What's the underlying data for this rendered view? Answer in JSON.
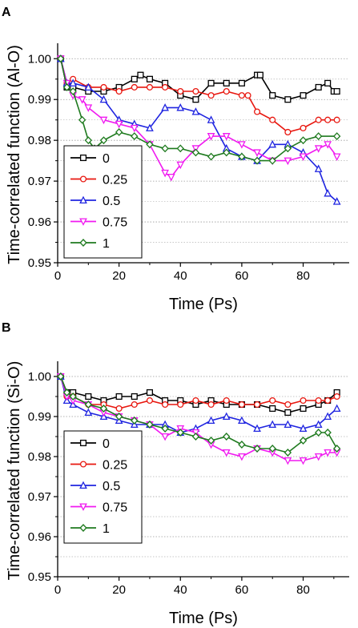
{
  "chart_data": [
    {
      "panel": "A",
      "type": "line",
      "xlabel": "Time (Ps)",
      "ylabel": "Time-correlated function (Al-O)",
      "xlim": [
        0,
        95
      ],
      "ylim": [
        0.95,
        1.003
      ],
      "xticks": [
        0,
        20,
        40,
        60,
        80
      ],
      "yticks": [
        0.95,
        0.96,
        0.97,
        0.98,
        0.99,
        1.0
      ],
      "grid": "horizontal-dotted",
      "legend_position": "bottom-left",
      "series": [
        {
          "name": "0",
          "color": "#000000",
          "marker": "square",
          "x": [
            1,
            3,
            5,
            10,
            15,
            20,
            25,
            27,
            30,
            35,
            40,
            45,
            50,
            55,
            60,
            65,
            66,
            70,
            75,
            80,
            85,
            88,
            90,
            91
          ],
          "y": [
            1.0,
            0.993,
            0.993,
            0.992,
            0.992,
            0.993,
            0.995,
            0.996,
            0.995,
            0.994,
            0.991,
            0.99,
            0.994,
            0.994,
            0.994,
            0.996,
            0.996,
            0.991,
            0.99,
            0.991,
            0.993,
            0.994,
            0.992,
            0.992
          ]
        },
        {
          "name": "0.25",
          "color": "#e8170f",
          "marker": "circle",
          "x": [
            1,
            3,
            5,
            10,
            15,
            20,
            25,
            30,
            35,
            40,
            45,
            50,
            55,
            60,
            62,
            65,
            70,
            75,
            80,
            85,
            88,
            91
          ],
          "y": [
            1.0,
            0.994,
            0.995,
            0.993,
            0.993,
            0.992,
            0.993,
            0.993,
            0.993,
            0.992,
            0.992,
            0.991,
            0.992,
            0.991,
            0.991,
            0.987,
            0.985,
            0.982,
            0.983,
            0.985,
            0.985,
            0.985
          ]
        },
        {
          "name": "0.5",
          "color": "#1f24e0",
          "marker": "triangle-up",
          "x": [
            1,
            3,
            5,
            10,
            15,
            20,
            25,
            30,
            35,
            40,
            45,
            50,
            55,
            60,
            65,
            70,
            75,
            80,
            85,
            88,
            91
          ],
          "y": [
            1.0,
            0.994,
            0.994,
            0.993,
            0.99,
            0.985,
            0.984,
            0.983,
            0.988,
            0.988,
            0.987,
            0.985,
            0.978,
            0.976,
            0.975,
            0.979,
            0.979,
            0.977,
            0.973,
            0.967,
            0.965
          ]
        },
        {
          "name": "0.75",
          "color": "#f01af0",
          "marker": "triangle-down",
          "x": [
            1,
            3,
            5,
            8,
            10,
            15,
            20,
            25,
            30,
            35,
            37,
            40,
            45,
            50,
            55,
            60,
            65,
            70,
            75,
            80,
            85,
            88,
            91
          ],
          "y": [
            1.0,
            0.994,
            0.991,
            0.99,
            0.988,
            0.985,
            0.984,
            0.983,
            0.979,
            0.972,
            0.971,
            0.974,
            0.978,
            0.981,
            0.981,
            0.979,
            0.977,
            0.975,
            0.975,
            0.976,
            0.978,
            0.979,
            0.976
          ]
        },
        {
          "name": "1",
          "color": "#1e7a1e",
          "marker": "diamond",
          "x": [
            1,
            3,
            5,
            8,
            10,
            12,
            15,
            20,
            25,
            30,
            35,
            40,
            45,
            50,
            55,
            60,
            65,
            70,
            75,
            80,
            85,
            91
          ],
          "y": [
            1.0,
            0.993,
            0.992,
            0.985,
            0.98,
            0.978,
            0.98,
            0.982,
            0.981,
            0.979,
            0.978,
            0.978,
            0.977,
            0.976,
            0.977,
            0.976,
            0.975,
            0.975,
            0.978,
            0.98,
            0.981,
            0.981
          ]
        }
      ]
    },
    {
      "panel": "B",
      "type": "line",
      "xlabel": "Time (Ps)",
      "ylabel": "Time-correlated function (Si-O)",
      "xlim": [
        0,
        95
      ],
      "ylim": [
        0.95,
        1.003
      ],
      "xticks": [
        0,
        20,
        40,
        60,
        80
      ],
      "yticks": [
        0.95,
        0.96,
        0.97,
        0.98,
        0.99,
        1.0
      ],
      "grid": "horizontal-dotted",
      "legend_position": "bottom-left",
      "series": [
        {
          "name": "0",
          "color": "#000000",
          "marker": "square",
          "x": [
            1,
            3,
            5,
            10,
            15,
            20,
            25,
            30,
            35,
            40,
            45,
            50,
            55,
            60,
            65,
            70,
            75,
            80,
            85,
            88,
            91
          ],
          "y": [
            1.0,
            0.996,
            0.996,
            0.995,
            0.994,
            0.995,
            0.995,
            0.996,
            0.994,
            0.994,
            0.993,
            0.994,
            0.993,
            0.993,
            0.993,
            0.992,
            0.991,
            0.992,
            0.993,
            0.994,
            0.996
          ]
        },
        {
          "name": "0.25",
          "color": "#e8170f",
          "marker": "circle",
          "x": [
            1,
            3,
            5,
            10,
            15,
            20,
            25,
            30,
            35,
            40,
            45,
            50,
            55,
            60,
            65,
            70,
            75,
            80,
            85,
            88,
            91
          ],
          "y": [
            1.0,
            0.995,
            0.995,
            0.993,
            0.993,
            0.992,
            0.993,
            0.994,
            0.993,
            0.993,
            0.994,
            0.993,
            0.994,
            0.993,
            0.993,
            0.994,
            0.993,
            0.994,
            0.994,
            0.994,
            0.995
          ]
        },
        {
          "name": "0.5",
          "color": "#1f24e0",
          "marker": "triangle-up",
          "x": [
            1,
            3,
            5,
            10,
            15,
            20,
            25,
            30,
            35,
            40,
            45,
            50,
            55,
            60,
            65,
            70,
            75,
            80,
            85,
            88,
            91
          ],
          "y": [
            1.0,
            0.994,
            0.993,
            0.991,
            0.99,
            0.989,
            0.988,
            0.988,
            0.988,
            0.986,
            0.987,
            0.989,
            0.99,
            0.989,
            0.987,
            0.988,
            0.988,
            0.987,
            0.988,
            0.99,
            0.992
          ]
        },
        {
          "name": "0.75",
          "color": "#f01af0",
          "marker": "triangle-down",
          "x": [
            1,
            3,
            5,
            10,
            15,
            20,
            25,
            30,
            35,
            40,
            45,
            50,
            55,
            60,
            65,
            70,
            75,
            80,
            85,
            88,
            91
          ],
          "y": [
            1.0,
            0.995,
            0.994,
            0.993,
            0.991,
            0.99,
            0.989,
            0.988,
            0.985,
            0.987,
            0.986,
            0.983,
            0.981,
            0.98,
            0.982,
            0.981,
            0.979,
            0.979,
            0.98,
            0.981,
            0.981
          ]
        },
        {
          "name": "1",
          "color": "#1e7a1e",
          "marker": "diamond",
          "x": [
            1,
            3,
            5,
            10,
            15,
            20,
            25,
            30,
            35,
            40,
            45,
            50,
            55,
            60,
            65,
            70,
            75,
            80,
            85,
            88,
            91
          ],
          "y": [
            1.0,
            0.996,
            0.995,
            0.993,
            0.992,
            0.99,
            0.989,
            0.988,
            0.987,
            0.986,
            0.985,
            0.984,
            0.985,
            0.983,
            0.982,
            0.982,
            0.981,
            0.984,
            0.986,
            0.986,
            0.982
          ]
        }
      ]
    }
  ]
}
